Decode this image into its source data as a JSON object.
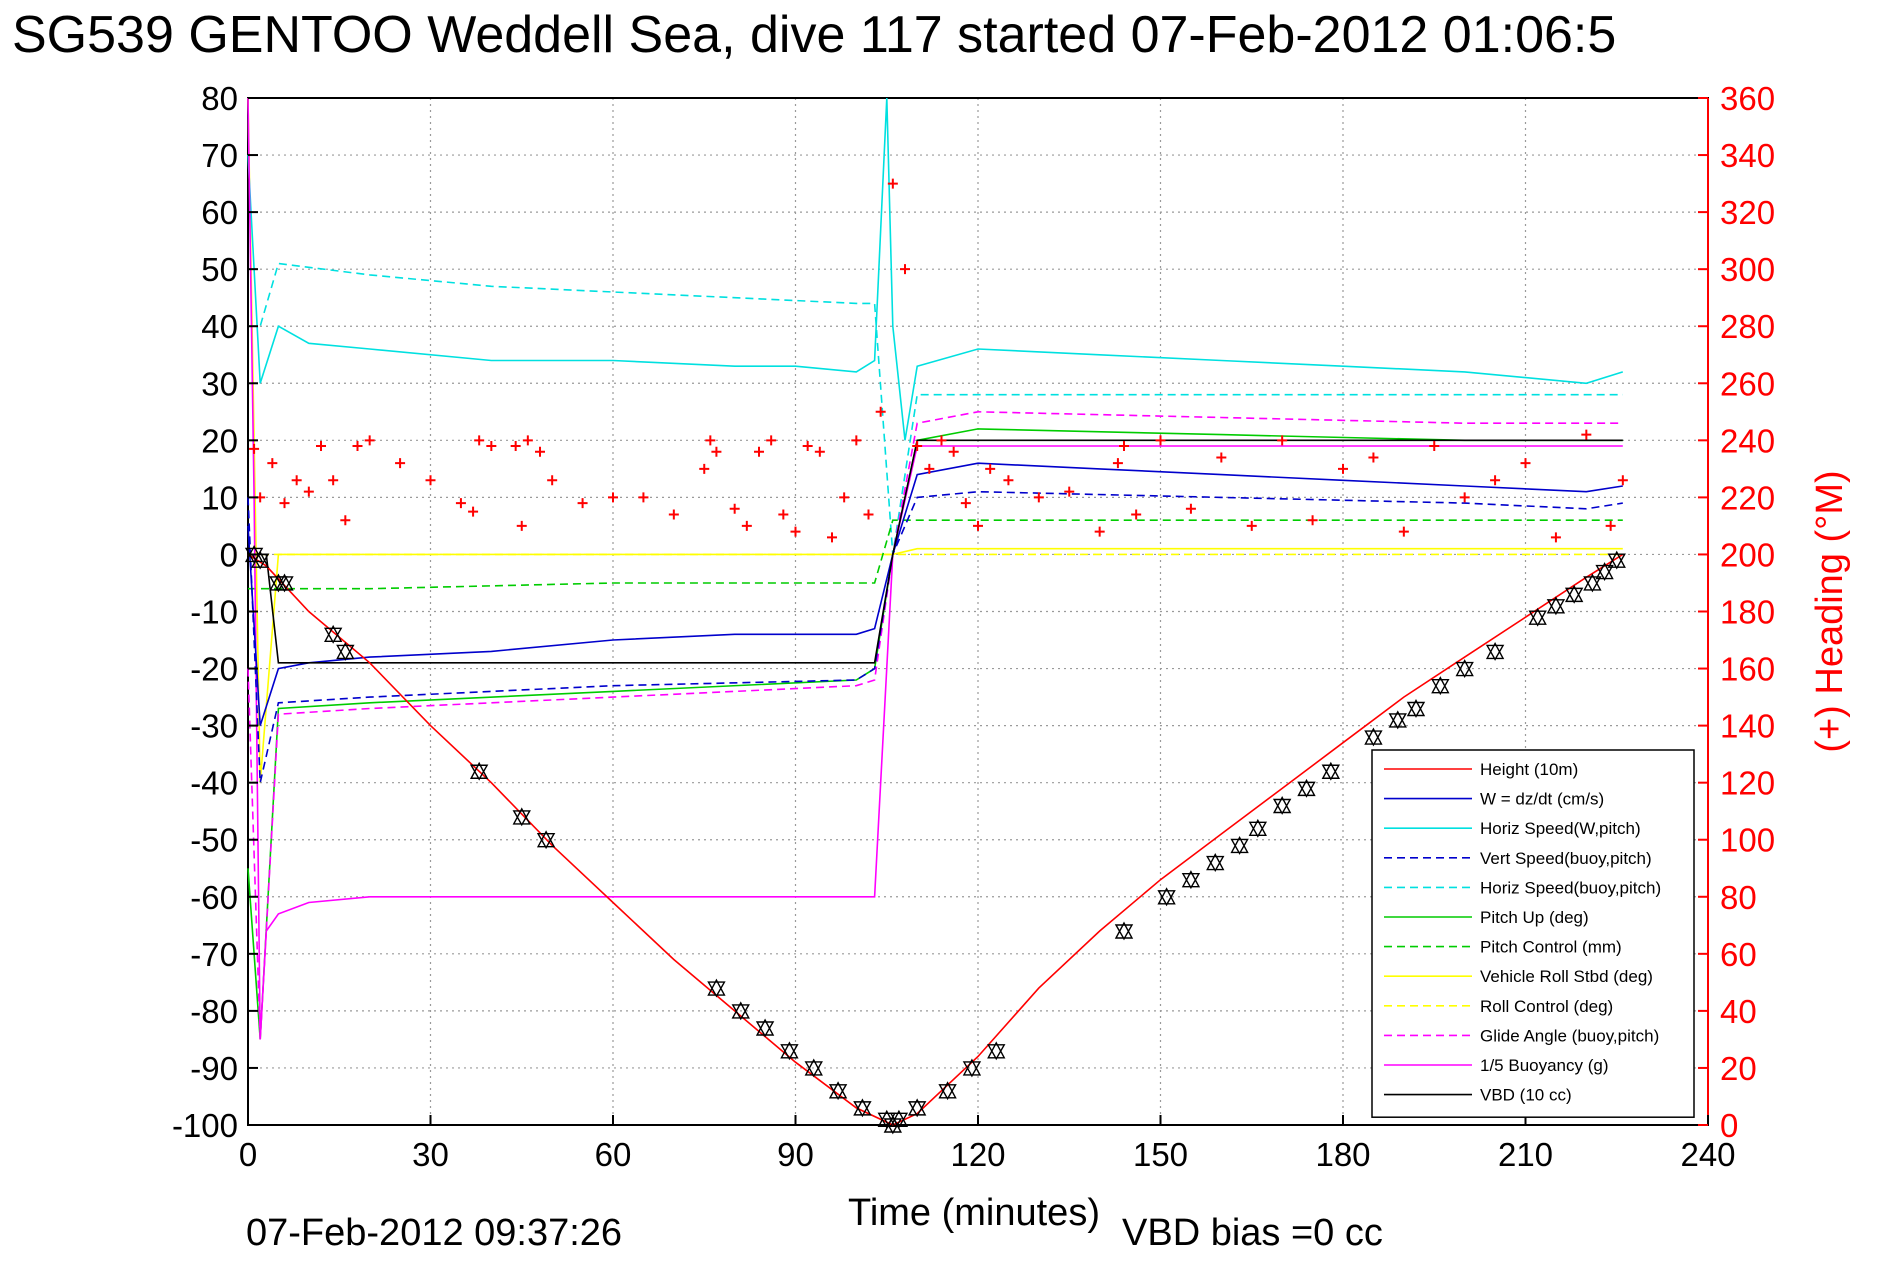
{
  "chart_data": {
    "type": "line",
    "title": "SG539 GENTOO Weddell Sea, dive 117 started 07-Feb-2012 01:06:5",
    "xlabel": "Time (minutes)",
    "ylabel": "",
    "y2label": "(+) Heading (°M)",
    "xlim": [
      0,
      240
    ],
    "ylim": [
      -100,
      80
    ],
    "y2lim": [
      0,
      360
    ],
    "x_ticks": [
      "0",
      "30",
      "60",
      "90",
      "120",
      "150",
      "180",
      "210",
      "240"
    ],
    "y_ticks": [
      "80",
      "70",
      "60",
      "50",
      "40",
      "30",
      "20",
      "10",
      "0",
      "-10",
      "-20",
      "-30",
      "-40",
      "-50",
      "-60",
      "-70",
      "-80",
      "-90",
      "-100"
    ],
    "y2_ticks": [
      "360",
      "340",
      "320",
      "300",
      "280",
      "260",
      "240",
      "220",
      "200",
      "180",
      "160",
      "140",
      "120",
      "100",
      "80",
      "60",
      "40",
      "20",
      "0"
    ],
    "grid": true,
    "legend_position": "bottom-right",
    "footer_left": "07-Feb-2012 09:37:26",
    "footer_right": "VBD bias =0 cc",
    "series": [
      {
        "name": "Height (10m)",
        "color": "#ff0000",
        "style": "solid",
        "x": [
          0,
          3,
          10,
          20,
          30,
          40,
          50,
          60,
          70,
          80,
          90,
          100,
          106,
          110,
          120,
          130,
          140,
          150,
          160,
          170,
          180,
          190,
          200,
          210,
          220,
          226
        ],
        "y": [
          0,
          -2,
          -10,
          -19,
          -30,
          -40,
          -51,
          -61,
          -71,
          -80,
          -89,
          -97,
          -100,
          -98,
          -88,
          -76,
          -66,
          -57,
          -49,
          -41,
          -33,
          -25,
          -18,
          -11,
          -4,
          0
        ]
      },
      {
        "name": "W = dz/dt (cm/s)",
        "color": "#0000cc",
        "style": "solid",
        "x": [
          0,
          2,
          5,
          10,
          20,
          40,
          60,
          80,
          90,
          100,
          103,
          106,
          110,
          120,
          140,
          160,
          180,
          200,
          220,
          226
        ],
        "y": [
          5,
          -30,
          -20,
          -19,
          -18,
          -17,
          -15,
          -14,
          -14,
          -14,
          -13,
          0,
          14,
          16,
          15,
          14,
          13,
          12,
          11,
          12
        ]
      },
      {
        "name": "Horiz Speed(W,pitch)",
        "color": "#00e0e0",
        "style": "solid",
        "x": [
          0,
          2,
          5,
          10,
          20,
          40,
          60,
          80,
          90,
          100,
          103,
          105,
          106,
          108,
          110,
          120,
          140,
          160,
          180,
          200,
          220,
          226
        ],
        "y": [
          70,
          30,
          40,
          37,
          36,
          34,
          34,
          33,
          33,
          32,
          34,
          80,
          40,
          20,
          33,
          36,
          35,
          34,
          33,
          32,
          30,
          32
        ]
      },
      {
        "name": "Vert Speed(buoy,pitch)",
        "color": "#0000cc",
        "style": "dashed",
        "x": [
          0,
          2,
          5,
          20,
          60,
          100,
          103,
          106,
          110,
          120,
          160,
          200,
          220,
          226
        ],
        "y": [
          10,
          -40,
          -26,
          -25,
          -23,
          -22,
          -20,
          0,
          10,
          11,
          10,
          9,
          8,
          9
        ]
      },
      {
        "name": "Horiz Speed(buoy,pitch)",
        "color": "#00e0e0",
        "style": "dashed",
        "x": [
          0,
          2,
          5,
          20,
          40,
          60,
          80,
          100,
          103,
          106,
          110,
          120,
          160,
          200,
          226
        ],
        "y": [
          40,
          40,
          51,
          49,
          47,
          46,
          45,
          44,
          44,
          0,
          28,
          28,
          28,
          28,
          28
        ]
      },
      {
        "name": "Pitch Up (deg)",
        "color": "#00cc00",
        "style": "solid",
        "x": [
          0,
          2,
          5,
          20,
          60,
          100,
          103,
          106,
          110,
          120,
          160,
          200,
          226
        ],
        "y": [
          -55,
          -85,
          -27,
          -26,
          -24,
          -22,
          -20,
          0,
          20,
          22,
          21,
          20,
          20
        ]
      },
      {
        "name": "Pitch Control (mm)",
        "color": "#00cc00",
        "style": "dashed",
        "x": [
          0,
          5,
          20,
          60,
          100,
          103,
          106,
          110,
          160,
          200,
          226
        ],
        "y": [
          -6,
          -6,
          -6,
          -5,
          -5,
          -5,
          6,
          6,
          6,
          6,
          6
        ]
      },
      {
        "name": "Vehicle Roll Stbd (deg)",
        "color": "#ffff00",
        "style": "solid",
        "x": [
          0,
          2,
          5,
          30,
          60,
          90,
          100,
          103,
          106,
          110,
          140,
          180,
          210,
          226
        ],
        "y": [
          80,
          -40,
          0,
          0,
          0,
          0,
          0,
          0,
          0,
          1,
          1,
          1,
          1,
          1
        ]
      },
      {
        "name": "Roll Control (deg)",
        "color": "#ffff00",
        "style": "dashed",
        "x": [
          0,
          5,
          60,
          100,
          106,
          120,
          180,
          226
        ],
        "y": [
          0,
          0,
          0,
          0,
          0,
          0,
          0,
          0
        ]
      },
      {
        "name": "Glide Angle (buoy,pitch)",
        "color": "#ff00ff",
        "style": "dashed",
        "x": [
          0,
          2,
          5,
          20,
          60,
          100,
          103,
          106,
          110,
          120,
          160,
          200,
          226
        ],
        "y": [
          -20,
          -85,
          -28,
          -27,
          -25,
          -23,
          -22,
          0,
          23,
          25,
          24,
          23,
          23
        ]
      },
      {
        "name": "1/5 Buoyancy (g)",
        "color": "#ff00ff",
        "style": "solid",
        "x": [
          0,
          1,
          2,
          3,
          5,
          10,
          20,
          40,
          60,
          80,
          100,
          103,
          106,
          110,
          120,
          160,
          200,
          226
        ],
        "y": [
          80,
          10,
          -85,
          -66,
          -63,
          -61,
          -60,
          -60,
          -60,
          -60,
          -60,
          -60,
          0,
          19,
          19,
          19,
          19,
          19
        ]
      },
      {
        "name": "VBD (10 cc)",
        "color": "#000000",
        "style": "solid",
        "x": [
          0,
          3,
          5,
          20,
          60,
          100,
          103,
          106,
          110,
          120,
          160,
          200,
          226
        ],
        "y": [
          0,
          0,
          -19,
          -19,
          -19,
          -19,
          -19,
          0,
          20,
          20,
          20,
          20,
          20
        ]
      }
    ],
    "heading_series": {
      "name": "(+) Heading (°M)",
      "axis": "right",
      "color": "#ff0000",
      "marker": "+",
      "x": [
        1,
        2,
        4,
        6,
        8,
        10,
        12,
        14,
        16,
        18,
        20,
        25,
        30,
        35,
        37,
        38,
        40,
        44,
        45,
        46,
        48,
        50,
        55,
        60,
        65,
        70,
        75,
        76,
        77,
        80,
        82,
        84,
        86,
        88,
        90,
        92,
        94,
        96,
        98,
        100,
        102,
        104,
        106,
        108,
        110,
        112,
        114,
        116,
        118,
        120,
        122,
        125,
        130,
        135,
        140,
        143,
        144,
        146,
        150,
        155,
        160,
        165,
        170,
        175,
        180,
        185,
        190,
        195,
        200,
        205,
        210,
        215,
        220,
        224,
        226
      ],
      "y": [
        237,
        220,
        232,
        218,
        226,
        222,
        238,
        226,
        212,
        238,
        240,
        232,
        226,
        218,
        215,
        240,
        238,
        238,
        210,
        240,
        236,
        226,
        218,
        220,
        220,
        214,
        230,
        240,
        236,
        216,
        210,
        236,
        240,
        214,
        208,
        238,
        236,
        206,
        220,
        240,
        214,
        250,
        330,
        300,
        238,
        230,
        240,
        236,
        218,
        210,
        230,
        226,
        220,
        222,
        208,
        232,
        238,
        214,
        240,
        216,
        234,
        210,
        240,
        212,
        230,
        234,
        208,
        238,
        220,
        226,
        232,
        206,
        242,
        210,
        226
      ]
    },
    "depth_markers": {
      "x": [
        1,
        2,
        5,
        6,
        14,
        16,
        38,
        45,
        49,
        77,
        81,
        85,
        89,
        93,
        97,
        101,
        105,
        106,
        107,
        110,
        115,
        119,
        123,
        144,
        151,
        155,
        159,
        163,
        166,
        170,
        174,
        178,
        185,
        189,
        192,
        196,
        200,
        205,
        212,
        215,
        218,
        221,
        223,
        225
      ],
      "y": [
        0,
        -1,
        -5,
        -5,
        -14,
        -17,
        -38,
        -46,
        -50,
        -76,
        -80,
        -83,
        -87,
        -90,
        -94,
        -97,
        -99,
        -100,
        -99,
        -97,
        -94,
        -90,
        -87,
        -66,
        -60,
        -57,
        -54,
        -51,
        -48,
        -44,
        -41,
        -38,
        -32,
        -29,
        -27,
        -23,
        -20,
        -17,
        -11,
        -9,
        -7,
        -5,
        -3,
        -1
      ]
    }
  }
}
